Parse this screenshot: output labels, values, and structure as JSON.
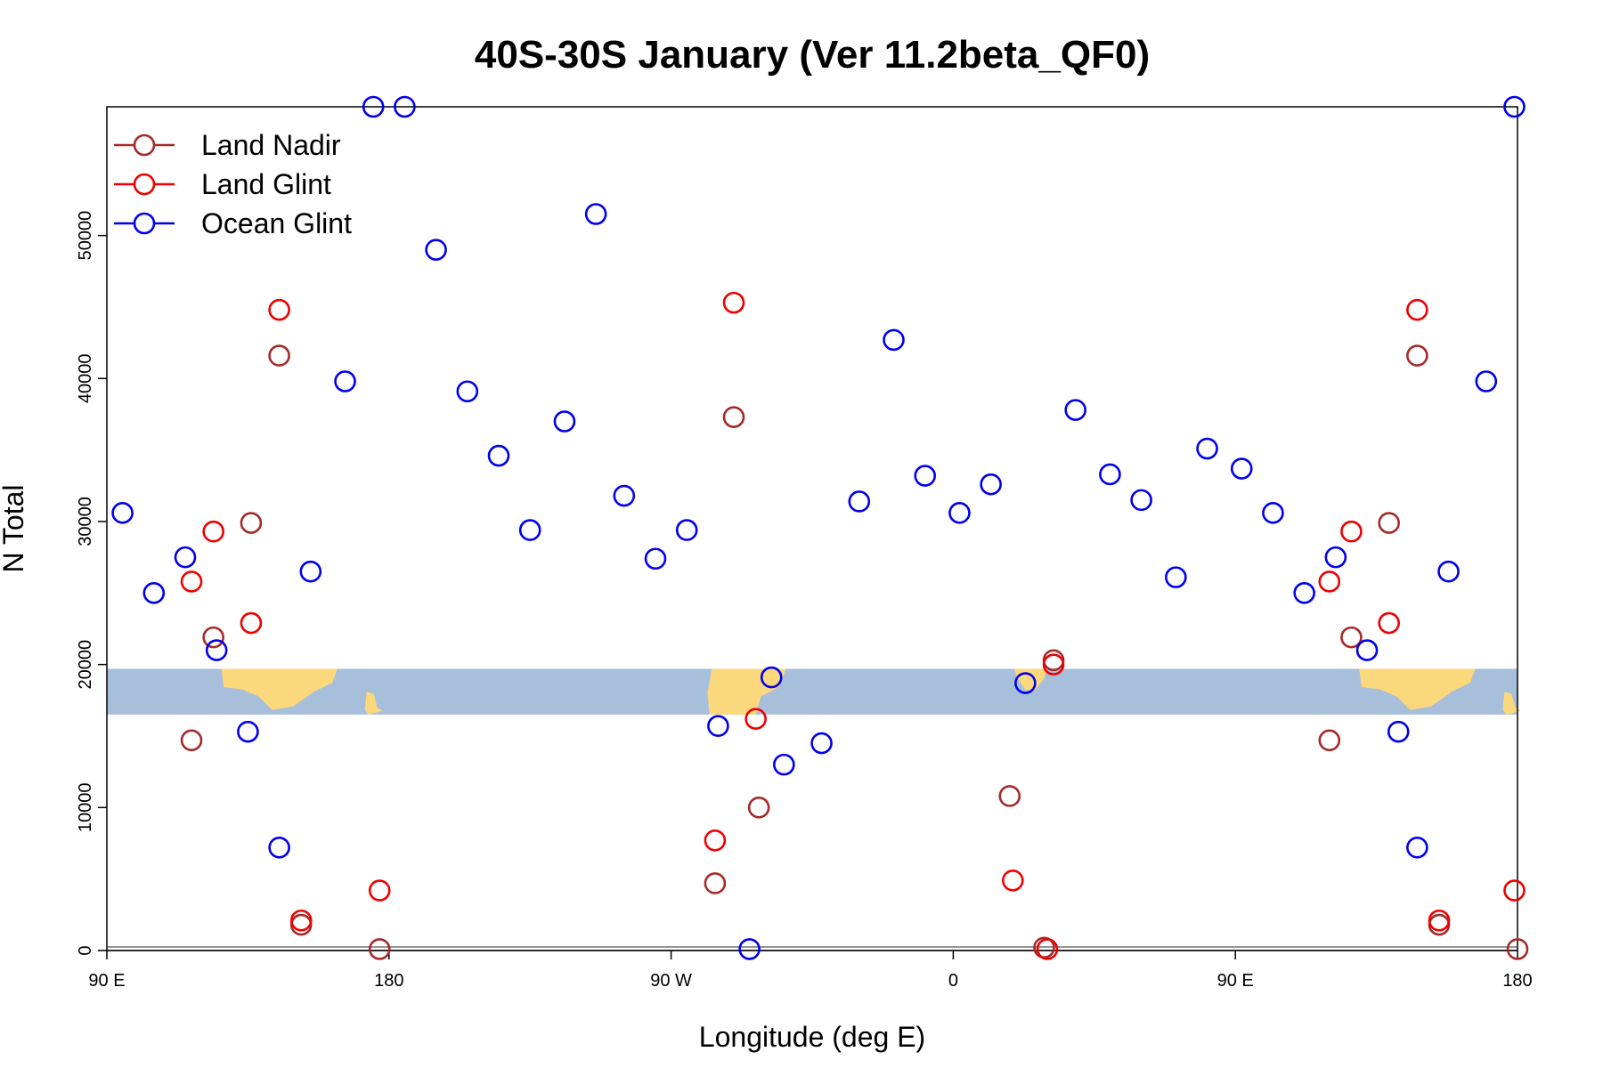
{
  "chart_data": {
    "type": "scatter",
    "title": "40S-30S January (Ver 11.2beta_QF0)",
    "xlabel": "Longitude (deg E)",
    "ylabel": "N Total",
    "xlim": [
      90,
      540
    ],
    "ylim": [
      0,
      59000
    ],
    "x_ticks": [
      {
        "value": 90,
        "label": "90 E"
      },
      {
        "value": 180,
        "label": "180"
      },
      {
        "value": 270,
        "label": "90 W"
      },
      {
        "value": 360,
        "label": "0"
      },
      {
        "value": 450,
        "label": "90 E"
      },
      {
        "value": 540,
        "label": "180"
      }
    ],
    "y_ticks": [
      {
        "value": 0,
        "label": "0"
      },
      {
        "value": 10000,
        "label": "10000"
      },
      {
        "value": 20000,
        "label": "20000"
      },
      {
        "value": 30000,
        "label": "30000"
      },
      {
        "value": 40000,
        "label": "40000"
      },
      {
        "value": 50000,
        "label": "50000"
      }
    ],
    "grid": false,
    "legend": "top-left",
    "map_band": {
      "ymin": 16500,
      "ymax": 19700,
      "ocean_color": "#a8bfdc",
      "land_color": "#fcd87c"
    },
    "series": [
      {
        "name": "Land Nadir",
        "color": "#a52a2a",
        "points": [
          [
            117,
            14700
          ],
          [
            124,
            21900
          ],
          [
            136,
            29900
          ],
          [
            145,
            41600
          ],
          [
            152,
            1800
          ],
          [
            177,
            100
          ],
          [
            290,
            37300
          ],
          [
            284,
            4700
          ],
          [
            298,
            10000
          ],
          [
            378,
            10800
          ],
          [
            389,
            200
          ],
          [
            392,
            20300
          ],
          [
            480,
            14700
          ],
          [
            487,
            21900
          ],
          [
            499,
            29900
          ],
          [
            508,
            41600
          ],
          [
            515,
            1800
          ],
          [
            540,
            100
          ]
        ]
      },
      {
        "name": "Land Glint",
        "color": "#ee0000",
        "points": [
          [
            117,
            25800
          ],
          [
            124,
            29300
          ],
          [
            136,
            22900
          ],
          [
            145,
            44800
          ],
          [
            152,
            2100
          ],
          [
            177,
            4200
          ],
          [
            290,
            45300
          ],
          [
            284,
            7700
          ],
          [
            297,
            16200
          ],
          [
            379,
            4900
          ],
          [
            390,
            100
          ],
          [
            392,
            20000
          ],
          [
            480,
            25800
          ],
          [
            487,
            29300
          ],
          [
            499,
            22900
          ],
          [
            508,
            44800
          ],
          [
            515,
            2100
          ],
          [
            539,
            4200
          ]
        ]
      },
      {
        "name": "Ocean Glint",
        "color": "#0000ee",
        "points": [
          [
            95,
            30600
          ],
          [
            105,
            25000
          ],
          [
            115,
            27500
          ],
          [
            125,
            21000
          ],
          [
            135,
            15300
          ],
          [
            145,
            7200
          ],
          [
            155,
            26500
          ],
          [
            166,
            39800
          ],
          [
            175,
            59000
          ],
          [
            185,
            59000
          ],
          [
            195,
            49000
          ],
          [
            205,
            39100
          ],
          [
            215,
            34600
          ],
          [
            225,
            29400
          ],
          [
            236,
            37000
          ],
          [
            246,
            51500
          ],
          [
            255,
            31800
          ],
          [
            265,
            27400
          ],
          [
            275,
            29400
          ],
          [
            285,
            15700
          ],
          [
            295,
            100
          ],
          [
            302,
            19100
          ],
          [
            306,
            13000
          ],
          [
            318,
            14500
          ],
          [
            330,
            31400
          ],
          [
            341,
            42700
          ],
          [
            351,
            33200
          ],
          [
            362,
            30600
          ],
          [
            372,
            32600
          ],
          [
            383,
            18700
          ],
          [
            399,
            37800
          ],
          [
            410,
            33300
          ],
          [
            420,
            31500
          ],
          [
            431,
            26100
          ],
          [
            441,
            35100
          ],
          [
            452,
            33700
          ],
          [
            462,
            30600
          ],
          [
            472,
            25000
          ],
          [
            482,
            27500
          ],
          [
            492,
            21000
          ],
          [
            502,
            15300
          ],
          [
            508,
            7200
          ],
          [
            518,
            26500
          ],
          [
            530,
            39800
          ],
          [
            539,
            59000
          ]
        ]
      }
    ]
  }
}
